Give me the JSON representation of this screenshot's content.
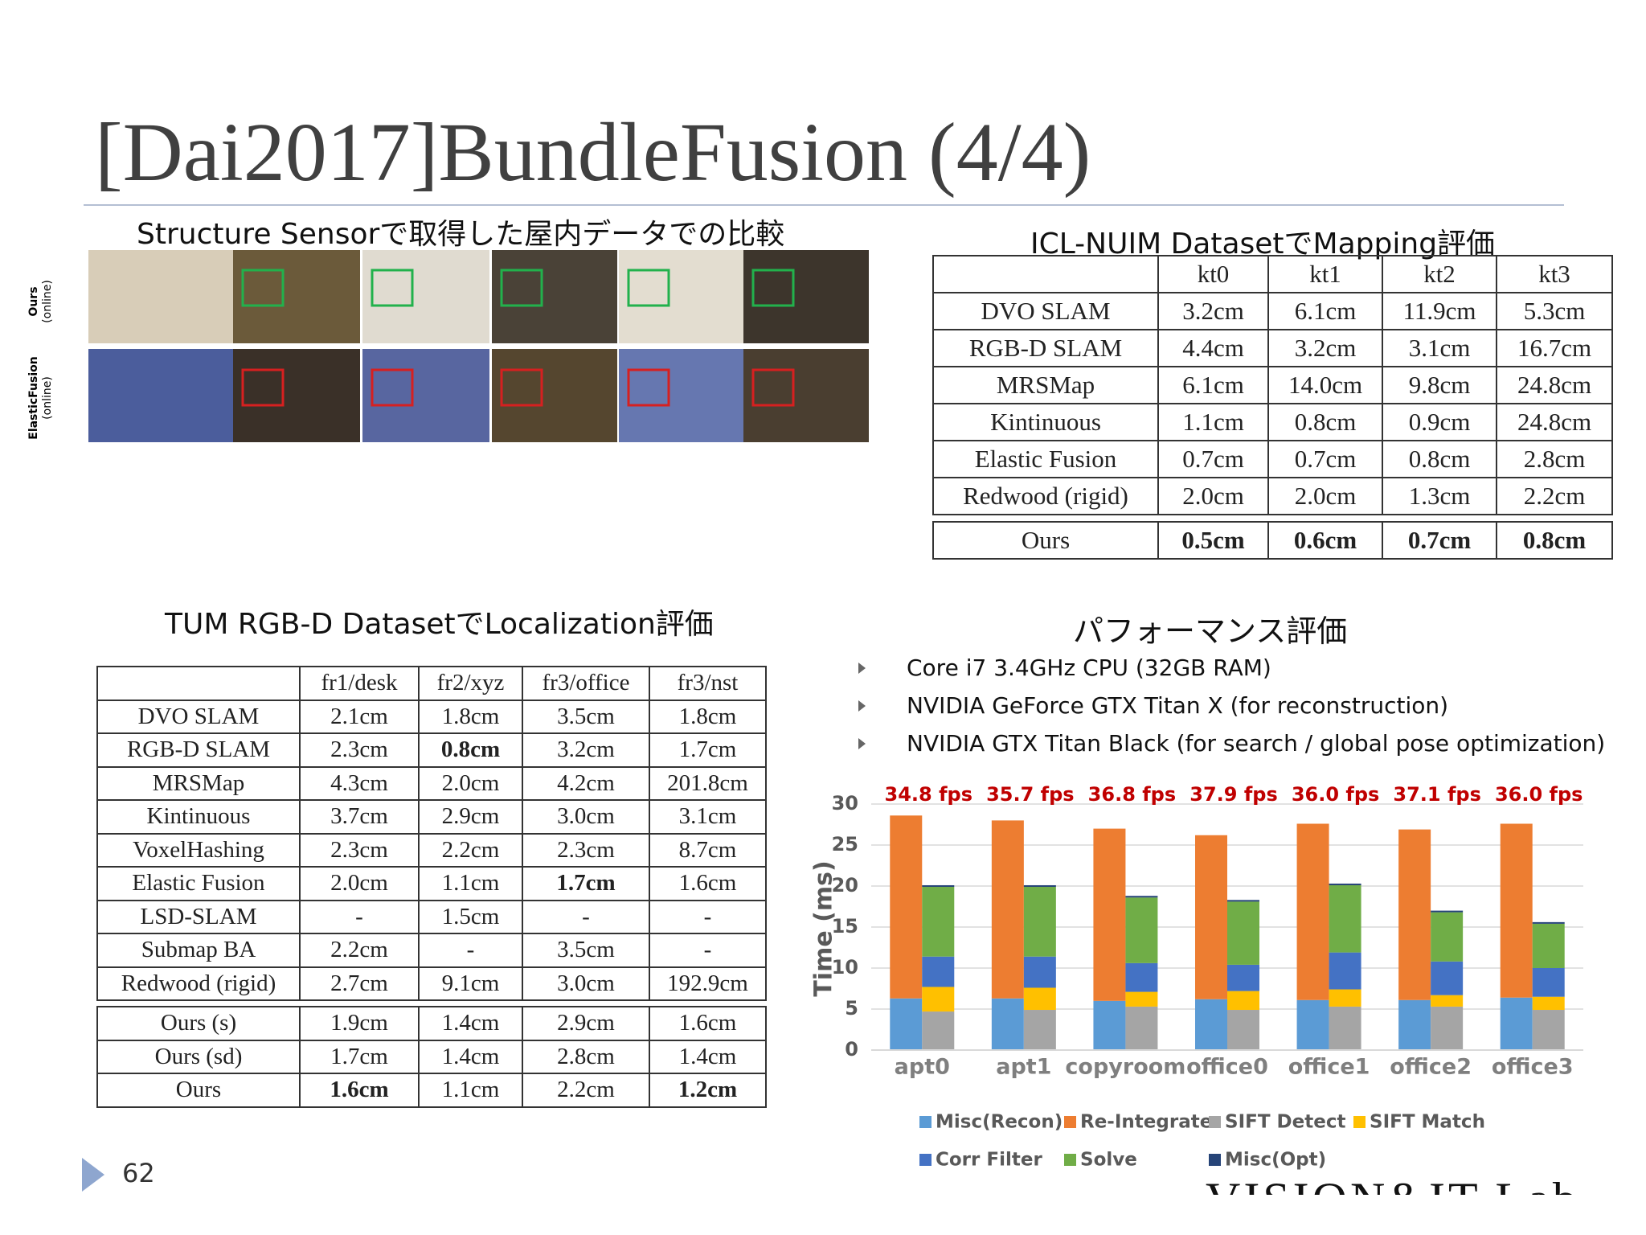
{
  "title": "[Dai2017]BundleFusion (4/4)",
  "qualitative": {
    "caption": "Structure Sensorで取得した屋内データでの比較",
    "row_labels": [
      {
        "name": "Ours",
        "note": "(online)"
      },
      {
        "name": "ElasticFusion",
        "note": "(online)"
      }
    ]
  },
  "icl_nuim": {
    "title": "ICL-NUIM DatasetでMapping評価",
    "columns": [
      "kt0",
      "kt1",
      "kt2",
      "kt3"
    ],
    "rows": [
      {
        "label": "DVO SLAM",
        "cells": [
          "3.2cm",
          "6.1cm",
          "11.9cm",
          "5.3cm"
        ]
      },
      {
        "label": "RGB-D SLAM",
        "cells": [
          "4.4cm",
          "3.2cm",
          "3.1cm",
          "16.7cm"
        ]
      },
      {
        "label": "MRSMap",
        "cells": [
          "6.1cm",
          "14.0cm",
          "9.8cm",
          "24.8cm"
        ]
      },
      {
        "label": "Kintinuous",
        "cells": [
          "1.1cm",
          "0.8cm",
          "0.9cm",
          "24.8cm"
        ]
      },
      {
        "label": "Elastic Fusion",
        "cells": [
          "0.7cm",
          "0.7cm",
          "0.8cm",
          "2.8cm"
        ]
      },
      {
        "label": "Redwood (rigid)",
        "cells": [
          "2.0cm",
          "2.0cm",
          "1.3cm",
          "2.2cm"
        ]
      }
    ],
    "ours_rows": [
      {
        "label": "Ours",
        "cells": [
          "0.5cm",
          "0.6cm",
          "0.7cm",
          "0.8cm"
        ],
        "bold": [
          0,
          1,
          2,
          3
        ]
      }
    ]
  },
  "tum": {
    "title": "TUM RGB-D DatasetでLocalization評価",
    "columns": [
      "fr1/desk",
      "fr2/xyz",
      "fr3/office",
      "fr3/nst"
    ],
    "rows": [
      {
        "label": "DVO SLAM",
        "cells": [
          "2.1cm",
          "1.8cm",
          "3.5cm",
          "1.8cm"
        ]
      },
      {
        "label": "RGB-D SLAM",
        "cells": [
          "2.3cm",
          "0.8cm",
          "3.2cm",
          "1.7cm"
        ],
        "bold": [
          1
        ]
      },
      {
        "label": "MRSMap",
        "cells": [
          "4.3cm",
          "2.0cm",
          "4.2cm",
          "201.8cm"
        ]
      },
      {
        "label": "Kintinuous",
        "cells": [
          "3.7cm",
          "2.9cm",
          "3.0cm",
          "3.1cm"
        ]
      },
      {
        "label": "VoxelHashing",
        "cells": [
          "2.3cm",
          "2.2cm",
          "2.3cm",
          "8.7cm"
        ]
      },
      {
        "label": "Elastic Fusion",
        "cells": [
          "2.0cm",
          "1.1cm",
          "1.7cm",
          "1.6cm"
        ],
        "bold": [
          2
        ]
      },
      {
        "label": "LSD-SLAM",
        "cells": [
          "-",
          "1.5cm",
          "-",
          "-"
        ]
      },
      {
        "label": "Submap BA",
        "cells": [
          "2.2cm",
          "-",
          "3.5cm",
          "-"
        ]
      },
      {
        "label": "Redwood (rigid)",
        "cells": [
          "2.7cm",
          "9.1cm",
          "3.0cm",
          "192.9cm"
        ]
      }
    ],
    "ours_rows": [
      {
        "label": "Ours (s)",
        "cells": [
          "1.9cm",
          "1.4cm",
          "2.9cm",
          "1.6cm"
        ]
      },
      {
        "label": "Ours (sd)",
        "cells": [
          "1.7cm",
          "1.4cm",
          "2.8cm",
          "1.4cm"
        ]
      },
      {
        "label": "Ours",
        "cells": [
          "1.6cm",
          "1.1cm",
          "2.2cm",
          "1.2cm"
        ],
        "bold": [
          0,
          3
        ]
      }
    ]
  },
  "performance": {
    "title": "パフォーマンス評価",
    "bullets": [
      "Core i7 3.4GHz CPU (32GB RAM)",
      "NVIDIA GeForce GTX Titan X (for reconstruction)",
      "NVIDIA GTX Titan Black (for search / global pose optimization)"
    ]
  },
  "chart_data": {
    "type": "bar",
    "stacked": true,
    "y_label": "Time (ms)",
    "categories": [
      "apt0",
      "apt1",
      "copyroom",
      "office0",
      "office1",
      "office2",
      "office3"
    ],
    "annotations": [
      "34.8 fps",
      "35.7 fps",
      "36.8 fps",
      "37.9 fps",
      "36.0 fps",
      "37.1 fps",
      "36.0 fps"
    ],
    "series": [
      {
        "name": "Misc(Recon)",
        "color": "#5b9bd5",
        "stack": "left",
        "values": [
          6.3,
          6.3,
          6.0,
          6.2,
          6.1,
          6.1,
          6.4
        ]
      },
      {
        "name": "Re-Integrate",
        "color": "#ed7d31",
        "stack": "left",
        "values": [
          22.3,
          21.7,
          21.0,
          20.0,
          21.5,
          20.8,
          21.2
        ]
      },
      {
        "name": "SIFT Detect",
        "color": "#a5a5a5",
        "stack": "right",
        "values": [
          4.7,
          4.9,
          5.3,
          4.9,
          5.3,
          5.3,
          4.9
        ]
      },
      {
        "name": "SIFT Match",
        "color": "#ffc000",
        "stack": "right",
        "values": [
          3.0,
          2.7,
          1.8,
          2.3,
          2.1,
          1.4,
          1.6
        ]
      },
      {
        "name": "Corr Filter",
        "color": "#4472c4",
        "stack": "right",
        "values": [
          3.7,
          3.8,
          3.5,
          3.2,
          4.5,
          4.1,
          3.5
        ]
      },
      {
        "name": "Solve",
        "color": "#70ad47",
        "stack": "right",
        "values": [
          8.5,
          8.5,
          8.0,
          7.7,
          8.2,
          6.0,
          5.4
        ]
      },
      {
        "name": "Misc(Opt)",
        "color": "#264478",
        "stack": "right",
        "values": [
          0.2,
          0.2,
          0.2,
          0.2,
          0.2,
          0.2,
          0.2
        ]
      }
    ],
    "ylim": [
      0,
      30
    ],
    "yticks": [
      0,
      5,
      10,
      15,
      20,
      25,
      30
    ],
    "grid": true
  },
  "footer": {
    "page_number": "62",
    "logo": "VISION&IT Lab"
  }
}
